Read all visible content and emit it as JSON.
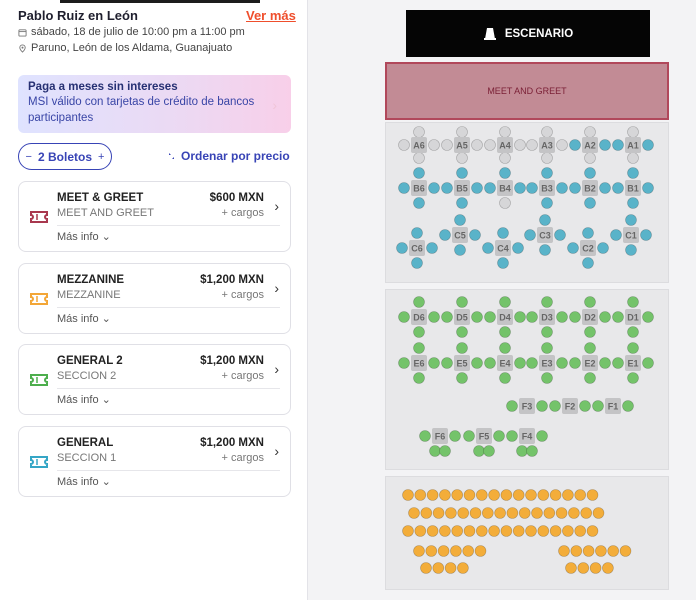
{
  "event": {
    "title": "Pablo Ruiz en León",
    "see_more": "Ver más",
    "date": "sábado, 18 de julio de 10:00 pm a 11:00 pm",
    "venue": "Paruno, León de los Aldama, Guanajuato"
  },
  "promo": {
    "title": "Paga a meses sin intereses",
    "text": "MSI válido con tarjetas de crédito de bancos participantes"
  },
  "tickets": {
    "minus": "−",
    "label": "2 Boletos",
    "plus": "+"
  },
  "sort_label": "Ordenar por precio",
  "cards": [
    {
      "name": "MEET & GREET",
      "section": "MEET AND GREET",
      "price": "$600 MXN",
      "fees": "+ cargos",
      "more": "Más info",
      "color": "#a8384e"
    },
    {
      "name": "MEZZANINE",
      "section": "MEZZANINE",
      "price": "$1,200 MXN",
      "fees": "+ cargos",
      "more": "Más info",
      "color": "#f3a636"
    },
    {
      "name": "GENERAL 2",
      "section": "SECCION 2",
      "price": "$1,200 MXN",
      "fees": "+ cargos",
      "more": "Más info",
      "color": "#4cae4c"
    },
    {
      "name": "GENERAL",
      "section": "SECCION 1",
      "price": "$1,200 MXN",
      "fees": "+ cargos",
      "more": "Más info",
      "color": "#35a6c6"
    }
  ],
  "map": {
    "stage": "ESCENARIO",
    "meet_greet": "MEET AND GREET",
    "colors": {
      "blue": "#59b3c9",
      "green": "#74c36a",
      "orange": "#f3ad3a",
      "table": "#c4c4c6",
      "free": "#d6d6d8"
    },
    "mezz_tables": [
      {
        "id": "A6"
      },
      {
        "id": "A5"
      },
      {
        "id": "A4"
      },
      {
        "id": "A3"
      },
      {
        "id": "A2"
      },
      {
        "id": "A1"
      },
      {
        "id": "B6"
      },
      {
        "id": "B5"
      },
      {
        "id": "B4"
      },
      {
        "id": "B3"
      },
      {
        "id": "B2"
      },
      {
        "id": "B1"
      },
      {
        "id": "C6"
      },
      {
        "id": "C5"
      },
      {
        "id": "C4"
      },
      {
        "id": "C3"
      },
      {
        "id": "C2"
      },
      {
        "id": "C1"
      }
    ],
    "gen2_tables": [
      {
        "id": "D6"
      },
      {
        "id": "D5"
      },
      {
        "id": "D4"
      },
      {
        "id": "D3"
      },
      {
        "id": "D2"
      },
      {
        "id": "D1"
      },
      {
        "id": "E6"
      },
      {
        "id": "E5"
      },
      {
        "id": "E4"
      },
      {
        "id": "E3"
      },
      {
        "id": "E2"
      },
      {
        "id": "E1"
      },
      {
        "id": "F3"
      },
      {
        "id": "F2"
      },
      {
        "id": "F1"
      },
      {
        "id": "F6"
      },
      {
        "id": "F5"
      },
      {
        "id": "F4"
      }
    ],
    "general_rows": [
      16,
      16,
      16,
      6,
      6,
      4,
      4
    ]
  }
}
